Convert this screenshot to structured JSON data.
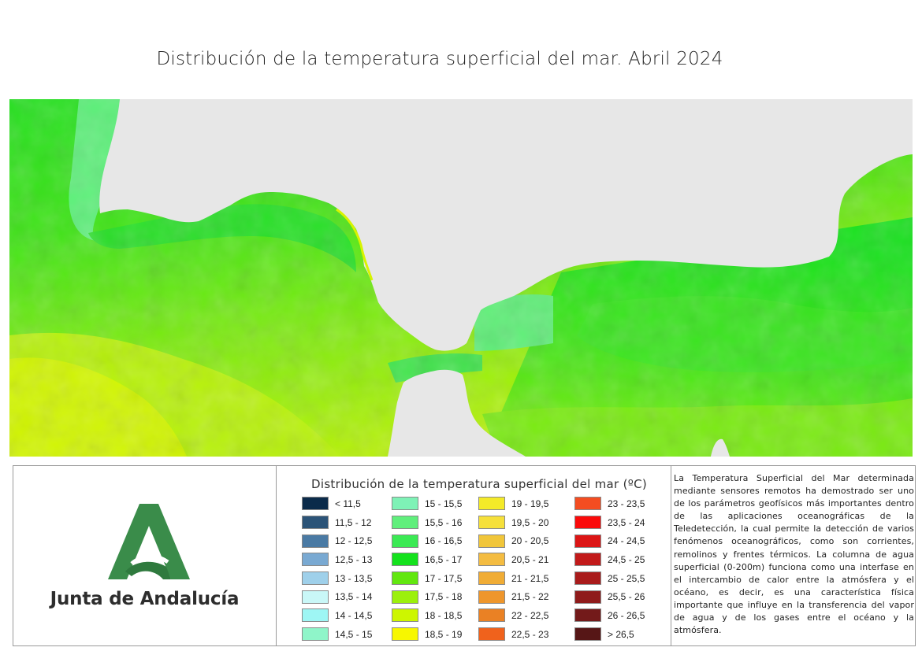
{
  "map": {
    "title": "Distribución de la temperatura superficial del mar. Abril 2024",
    "land_color": "#e7e7e7"
  },
  "logo": {
    "text": "Junta de Andalucía",
    "brand_color": "#3a8c4a"
  },
  "legend": {
    "title": "Distribución de la temperatura superficial del mar (ºC)",
    "columns": [
      [
        {
          "label": "< 11,5",
          "color": "#0b2b4a"
        },
        {
          "label": "11,5 - 12",
          "color": "#2c5478"
        },
        {
          "label": "12 - 12,5",
          "color": "#4a7aa4"
        },
        {
          "label": "12,5 - 13",
          "color": "#79a9d2"
        },
        {
          "label": "13 - 13,5",
          "color": "#9fd0ea"
        },
        {
          "label": "13,5 - 14",
          "color": "#c9f7f7"
        },
        {
          "label": "14 - 14,5",
          "color": "#9ef6f4"
        },
        {
          "label": "14,5 - 15",
          "color": "#8ff5c9"
        }
      ],
      [
        {
          "label": "15 - 15,5",
          "color": "#7ef2b6"
        },
        {
          "label": "15,5 - 16",
          "color": "#60ef7c"
        },
        {
          "label": "16 - 16,5",
          "color": "#3bea54"
        },
        {
          "label": "16,5 - 17",
          "color": "#14e21d"
        },
        {
          "label": "17 - 17,5",
          "color": "#62e70f"
        },
        {
          "label": "17,5 - 18",
          "color": "#9cf00c"
        },
        {
          "label": "18 - 18,5",
          "color": "#cdf600"
        },
        {
          "label": "18,5 - 19",
          "color": "#f7f700"
        }
      ],
      [
        {
          "label": "19 - 19,5",
          "color": "#f4ea28"
        },
        {
          "label": "19,5 - 20",
          "color": "#f6e03a"
        },
        {
          "label": "20 - 20,5",
          "color": "#f1c63a"
        },
        {
          "label": "20,5 - 21",
          "color": "#f4bc41"
        },
        {
          "label": "21 - 21,5",
          "color": "#f0ac35"
        },
        {
          "label": "21,5 - 22",
          "color": "#ee962c"
        },
        {
          "label": "22 - 22,5",
          "color": "#ea8124"
        },
        {
          "label": "22,5 - 23",
          "color": "#f0621c"
        }
      ],
      [
        {
          "label": "23 - 23,5",
          "color": "#f44d21"
        },
        {
          "label": "23,5 - 24",
          "color": "#fb0a0a"
        },
        {
          "label": "24 - 24,5",
          "color": "#dc1515"
        },
        {
          "label": "24,5 - 25",
          "color": "#c21a1a"
        },
        {
          "label": "25 - 25,5",
          "color": "#a91b1b"
        },
        {
          "label": "25,5 - 26",
          "color": "#8f1b1b"
        },
        {
          "label": "26 - 26,5",
          "color": "#731a1a"
        },
        {
          "label": "> 26,5",
          "color": "#561616"
        }
      ]
    ]
  },
  "info": {
    "text": "La Temperatura Superficial del Mar determinada mediante sensores remotos ha demostrado ser uno de los parámetros geofísicos más importantes dentro de las aplicaciones oceanográficas de la Teledetección, la cual permite la detección de varios fenómenos oceanográficos, como son corrientes, remolinos y frentes térmicos. La columna de agua superficial (0-200m) funciona como una interfase en el intercambio de calor entre la atmósfera y el océano, es decir, es una característica física importante que influye en la transferencia del vapor de agua y de los gases entre el océano y la atmósfera."
  }
}
